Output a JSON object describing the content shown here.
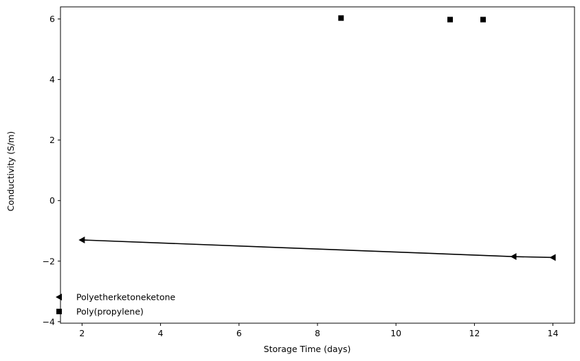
{
  "chart_data": {
    "type": "scatter",
    "title": "",
    "xlabel": "Storage Time (days)",
    "ylabel": "Conductivity (S/m)",
    "xlim": [
      1.45,
      14.55
    ],
    "ylim": [
      -4.05,
      6.4
    ],
    "xticks": [
      2,
      4,
      6,
      8,
      10,
      12,
      14
    ],
    "yticks": [
      -4,
      -2,
      0,
      2,
      4,
      6
    ],
    "grid": false,
    "legend_position": "lower-left",
    "series": [
      {
        "name": "Polyetherketoneketone",
        "marker": "triangle-left",
        "color": "#000000",
        "connected": true,
        "x": [
          2,
          13,
          14
        ],
        "y": [
          -1.3,
          -1.85,
          -1.88
        ]
      },
      {
        "name": "Poly(propylene)",
        "marker": "square",
        "color": "#000000",
        "connected": false,
        "x": [
          8.6,
          11.38,
          12.22
        ],
        "y": [
          6.03,
          5.98,
          5.98
        ]
      }
    ]
  }
}
